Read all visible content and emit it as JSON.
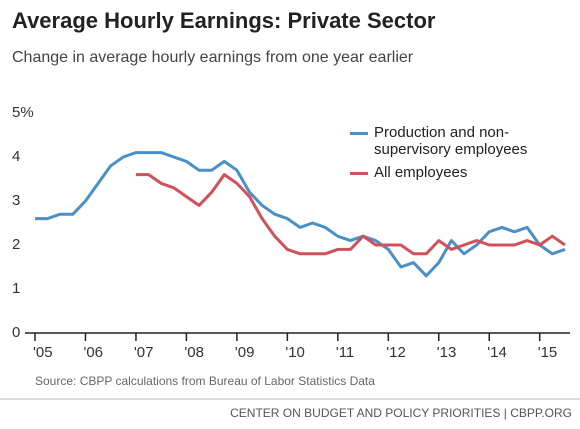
{
  "chart_data": {
    "type": "line",
    "title": "Average Hourly Earnings: Private Sector",
    "subtitle": "Change in average hourly earnings from one year earlier",
    "source": "Source: CBPP calculations from Bureau of Labor Statistics Data",
    "footer": "CENTER ON BUDGET AND POLICY PRIORITIES | CBPP.ORG",
    "x": [
      2005,
      2005.25,
      2005.5,
      2005.75,
      2006,
      2006.25,
      2006.5,
      2006.75,
      2007,
      2007.25,
      2007.5,
      2007.75,
      2008,
      2008.25,
      2008.5,
      2008.75,
      2009,
      2009.25,
      2009.5,
      2009.75,
      2010,
      2010.25,
      2010.5,
      2010.75,
      2011,
      2011.25,
      2011.5,
      2011.75,
      2012,
      2012.25,
      2012.5,
      2012.75,
      2013,
      2013.25,
      2013.5,
      2013.75,
      2014,
      2014.25,
      2014.5,
      2014.75,
      2015,
      2015.25,
      2015.5
    ],
    "series": [
      {
        "name": "Production and non-supervisory employees",
        "color": "#4a8fc8",
        "values": [
          2.6,
          2.6,
          2.7,
          2.7,
          3.0,
          3.4,
          3.8,
          4.0,
          4.1,
          4.1,
          4.1,
          4.0,
          3.9,
          3.7,
          3.7,
          3.9,
          3.7,
          3.2,
          2.9,
          2.7,
          2.6,
          2.4,
          2.5,
          2.4,
          2.2,
          2.1,
          2.2,
          2.1,
          1.9,
          1.5,
          1.6,
          1.3,
          1.6,
          2.1,
          1.8,
          2.0,
          2.3,
          2.4,
          2.3,
          2.4,
          2.0,
          1.8,
          1.9
        ]
      },
      {
        "name": "All employees",
        "color": "#d1505a",
        "values": [
          null,
          null,
          null,
          null,
          null,
          null,
          null,
          null,
          3.6,
          3.6,
          3.4,
          3.3,
          3.1,
          2.9,
          3.2,
          3.6,
          3.4,
          3.1,
          2.6,
          2.2,
          1.9,
          1.8,
          1.8,
          1.8,
          1.9,
          1.9,
          2.2,
          2.0,
          2.0,
          2.0,
          1.8,
          1.8,
          2.1,
          1.9,
          2.0,
          2.1,
          2.0,
          2.0,
          2.0,
          2.1,
          2.0,
          2.2,
          2.0
        ]
      }
    ],
    "xlim": [
      2005,
      2015.6
    ],
    "xticks": [
      {
        "value": 2005,
        "label": "'05"
      },
      {
        "value": 2006,
        "label": "'06"
      },
      {
        "value": 2007,
        "label": "'07"
      },
      {
        "value": 2008,
        "label": "'08"
      },
      {
        "value": 2009,
        "label": "'09"
      },
      {
        "value": 2010,
        "label": "'10"
      },
      {
        "value": 2011,
        "label": "'11"
      },
      {
        "value": 2012,
        "label": "'12"
      },
      {
        "value": 2013,
        "label": "'13"
      },
      {
        "value": 2014,
        "label": "'14"
      },
      {
        "value": 2015,
        "label": "'15"
      }
    ],
    "ylim": [
      0,
      5
    ],
    "yticks": [
      0,
      1,
      2,
      3,
      4,
      {
        "value": 5,
        "label": "5%"
      }
    ],
    "grid": false,
    "legend": "top-right"
  }
}
